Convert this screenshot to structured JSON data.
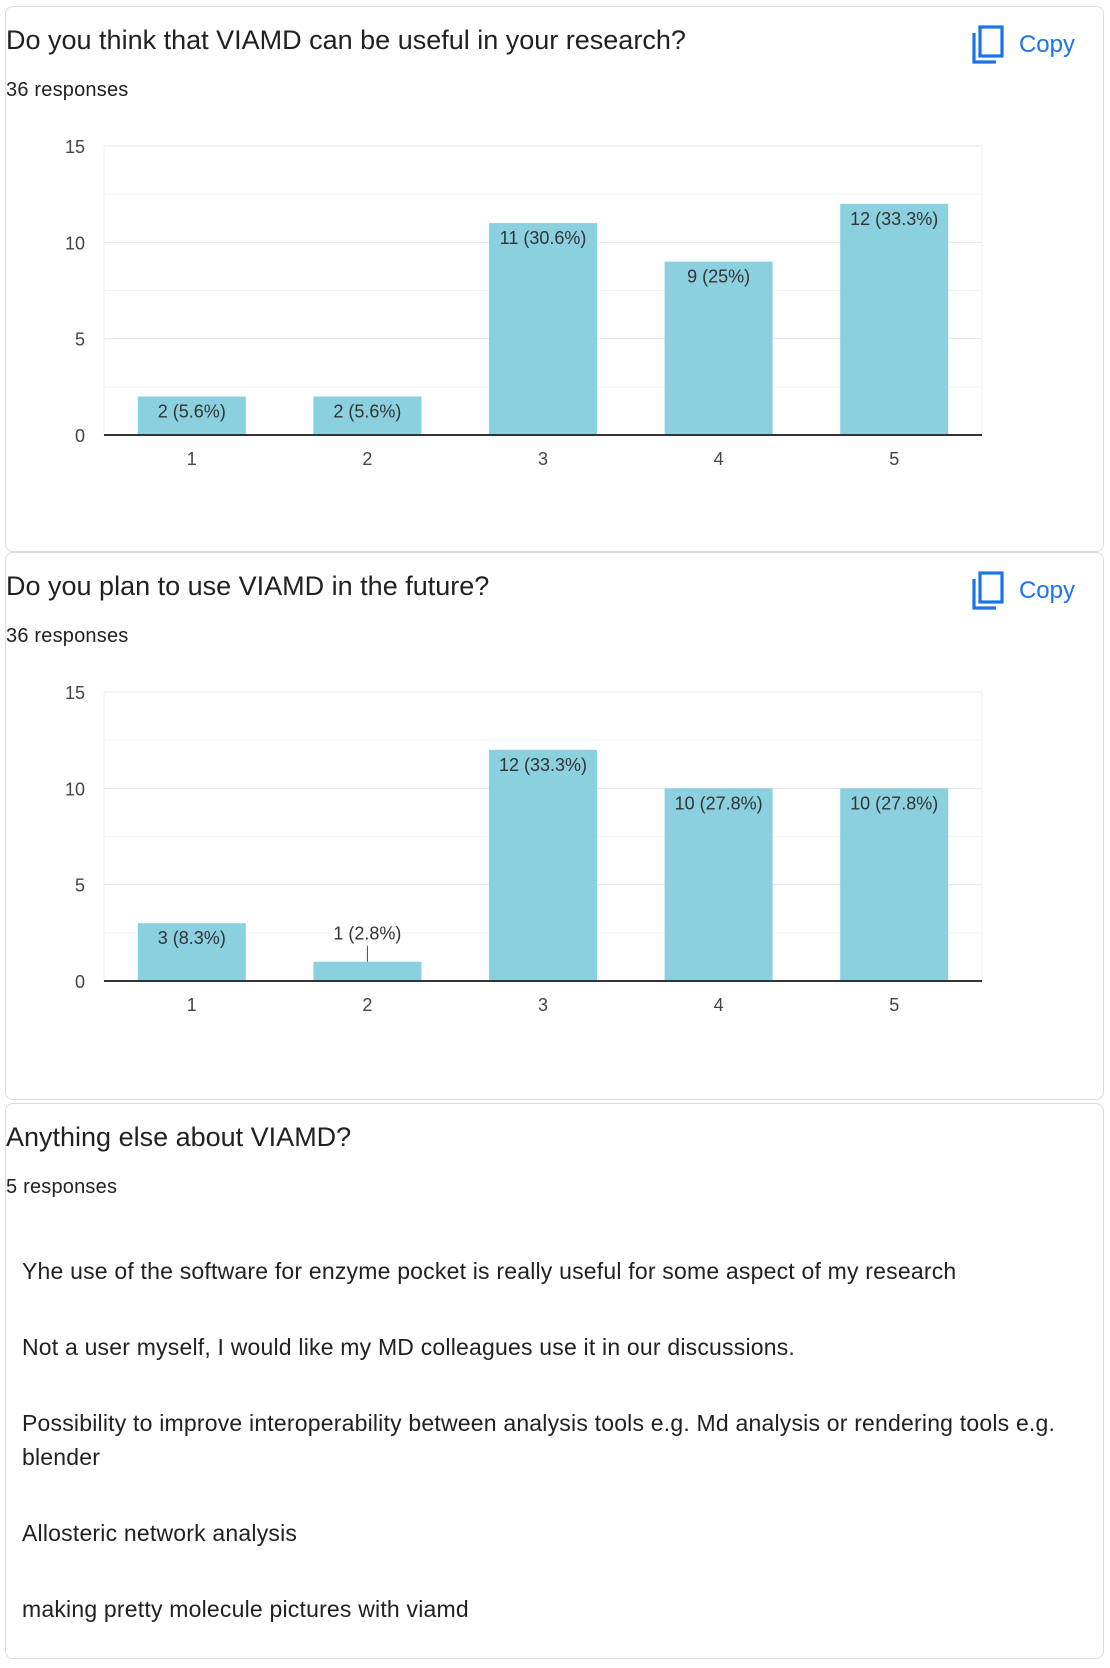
{
  "copy_label": "Copy",
  "cards": [
    {
      "title": "Do you think that VIAMD can be useful in your research?",
      "responses": "36 responses",
      "chart_data": {
        "type": "bar",
        "categories": [
          "1",
          "2",
          "3",
          "4",
          "5"
        ],
        "values": [
          2,
          2,
          11,
          9,
          12
        ],
        "labels": [
          "2 (5.6%)",
          "2 (5.6%)",
          "11 (30.6%)",
          "9 (25%)",
          "12 (33.3%)"
        ],
        "yticks": [
          "0",
          "5",
          "10",
          "15"
        ],
        "ylim": [
          0,
          15
        ],
        "bar_color": "#8bd0df"
      }
    },
    {
      "title": "Do you plan to use VIAMD in the future?",
      "responses": "36 responses",
      "chart_data": {
        "type": "bar",
        "categories": [
          "1",
          "2",
          "3",
          "4",
          "5"
        ],
        "values": [
          3,
          1,
          12,
          10,
          10
        ],
        "labels": [
          "3 (8.3%)",
          "1 (2.8%)",
          "12 (33.3%)",
          "10 (27.8%)",
          "10 (27.8%)"
        ],
        "yticks": [
          "0",
          "5",
          "10",
          "15"
        ],
        "ylim": [
          0,
          15
        ],
        "bar_color": "#8bd0df"
      }
    },
    {
      "title": "Anything else about VIAMD?",
      "responses": "5 responses",
      "answers": [
        "Yhe use of the software for enzyme pocket is really useful for some aspect of my research",
        "Not a user myself, I would like my MD colleagues use it in our discussions.",
        "Possibility to improve interoperability between analysis tools e.g. Md analysis or rendering tools e.g. blender",
        "Allosteric network analysis",
        "making pretty molecule pictures with viamd"
      ]
    }
  ],
  "colors": {
    "accent": "#1a73e8",
    "bar": "#8bd0df",
    "border": "#dadce0"
  }
}
